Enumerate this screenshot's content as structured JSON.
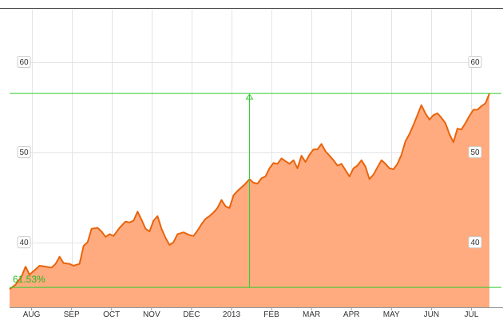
{
  "chart_data": {
    "type": "area",
    "title": "",
    "xlabel": "",
    "ylabel": "",
    "ylim": [
      32.8,
      65.8
    ],
    "grid": true,
    "y_ticks": [
      40,
      50,
      60
    ],
    "x_ticks": [
      "AUG",
      "SEP",
      "OCT",
      "NOV",
      "DEC",
      "2013",
      "FEB",
      "MAR",
      "APR",
      "MAY",
      "JUN",
      "JUL"
    ],
    "x_tick_positions": [
      0.55,
      1.55,
      2.55,
      3.55,
      4.55,
      5.55,
      6.55,
      7.55,
      8.55,
      9.55,
      10.55,
      11.55
    ],
    "xlim": [
      0,
      12.3
    ],
    "series": [
      {
        "name": "",
        "color": "#e8640c",
        "fill": "#ffab7f",
        "points": [
          [
            0.0,
            34.8
          ],
          [
            0.15,
            35.3
          ],
          [
            0.3,
            36.2
          ],
          [
            0.4,
            37.3
          ],
          [
            0.5,
            36.4
          ],
          [
            0.6,
            36.8
          ],
          [
            0.75,
            37.4
          ],
          [
            0.9,
            37.3
          ],
          [
            1.05,
            37.2
          ],
          [
            1.15,
            37.6
          ],
          [
            1.25,
            38.4
          ],
          [
            1.35,
            37.7
          ],
          [
            1.5,
            37.6
          ],
          [
            1.6,
            37.4
          ],
          [
            1.75,
            37.6
          ],
          [
            1.85,
            39.6
          ],
          [
            1.95,
            40.0
          ],
          [
            2.05,
            41.5
          ],
          [
            2.2,
            41.6
          ],
          [
            2.3,
            41.2
          ],
          [
            2.4,
            40.6
          ],
          [
            2.5,
            40.9
          ],
          [
            2.6,
            40.7
          ],
          [
            2.75,
            41.6
          ],
          [
            2.9,
            42.3
          ],
          [
            3.0,
            42.2
          ],
          [
            3.1,
            42.4
          ],
          [
            3.2,
            43.4
          ],
          [
            3.3,
            42.5
          ],
          [
            3.4,
            41.5
          ],
          [
            3.5,
            41.2
          ],
          [
            3.6,
            42.4
          ],
          [
            3.7,
            42.9
          ],
          [
            3.8,
            41.5
          ],
          [
            3.9,
            40.5
          ],
          [
            4.0,
            39.7
          ],
          [
            4.1,
            40.0
          ],
          [
            4.2,
            40.9
          ],
          [
            4.35,
            41.1
          ],
          [
            4.5,
            40.8
          ],
          [
            4.6,
            40.7
          ],
          [
            4.7,
            41.3
          ],
          [
            4.8,
            42.0
          ],
          [
            4.9,
            42.6
          ],
          [
            5.0,
            42.9
          ],
          [
            5.1,
            43.3
          ],
          [
            5.2,
            43.8
          ],
          [
            5.3,
            44.7
          ],
          [
            5.4,
            44.0
          ],
          [
            5.5,
            43.8
          ],
          [
            5.6,
            45.2
          ],
          [
            5.7,
            45.7
          ],
          [
            5.8,
            46.1
          ],
          [
            5.9,
            46.5
          ],
          [
            6.0,
            47.0
          ],
          [
            6.1,
            46.6
          ],
          [
            6.2,
            46.5
          ],
          [
            6.3,
            47.1
          ],
          [
            6.4,
            47.3
          ],
          [
            6.5,
            48.2
          ],
          [
            6.6,
            48.8
          ],
          [
            6.7,
            48.7
          ],
          [
            6.8,
            49.3
          ],
          [
            6.9,
            49.0
          ],
          [
            7.0,
            48.7
          ],
          [
            7.1,
            49.1
          ],
          [
            7.2,
            48.2
          ],
          [
            7.3,
            49.6
          ],
          [
            7.4,
            48.9
          ],
          [
            7.5,
            49.7
          ],
          [
            7.6,
            50.3
          ],
          [
            7.7,
            50.3
          ],
          [
            7.8,
            50.9
          ],
          [
            7.9,
            50.1
          ],
          [
            8.0,
            49.6
          ],
          [
            8.1,
            49.1
          ],
          [
            8.2,
            48.5
          ],
          [
            8.3,
            48.7
          ],
          [
            8.4,
            48.0
          ],
          [
            8.5,
            47.3
          ],
          [
            8.6,
            48.2
          ],
          [
            8.7,
            48.5
          ],
          [
            8.8,
            49.1
          ],
          [
            8.9,
            48.4
          ],
          [
            9.0,
            47.0
          ],
          [
            9.1,
            47.5
          ],
          [
            9.2,
            48.3
          ],
          [
            9.3,
            49.1
          ],
          [
            9.4,
            48.7
          ],
          [
            9.5,
            48.2
          ],
          [
            9.6,
            48.1
          ],
          [
            9.7,
            48.7
          ],
          [
            9.8,
            49.7
          ],
          [
            9.9,
            51.2
          ],
          [
            10.0,
            52.0
          ],
          [
            10.1,
            53.0
          ],
          [
            10.2,
            54.1
          ],
          [
            10.3,
            55.2
          ],
          [
            10.4,
            54.3
          ],
          [
            10.5,
            53.6
          ],
          [
            10.6,
            54.1
          ],
          [
            10.7,
            54.3
          ],
          [
            10.8,
            53.8
          ],
          [
            10.9,
            53.2
          ],
          [
            11.0,
            52.0
          ],
          [
            11.1,
            51.1
          ],
          [
            11.2,
            52.6
          ],
          [
            11.3,
            52.5
          ],
          [
            11.4,
            53.2
          ],
          [
            11.5,
            54.0
          ],
          [
            11.6,
            54.7
          ],
          [
            11.7,
            54.7
          ],
          [
            11.8,
            55.1
          ],
          [
            11.9,
            55.4
          ],
          [
            12.0,
            56.5
          ]
        ]
      }
    ],
    "change_range": {
      "low": 35.0,
      "high": 56.5,
      "x": 6.0,
      "label": "61.53%",
      "color": "#33cc33"
    }
  }
}
